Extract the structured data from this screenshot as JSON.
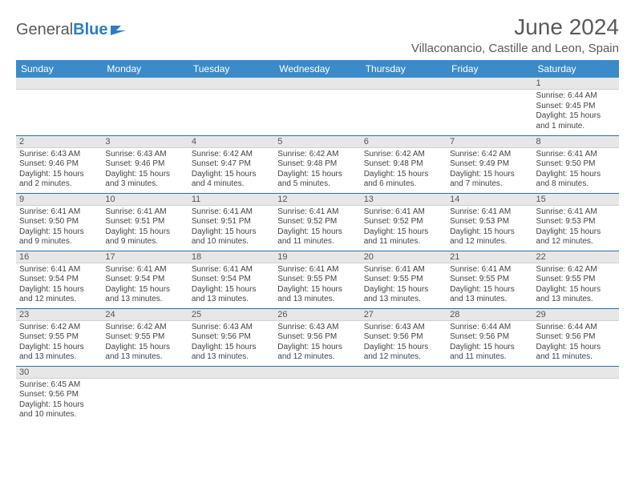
{
  "brand": {
    "part1": "General",
    "part2": "Blue"
  },
  "title": "June 2024",
  "location": "Villaconancio, Castille and Leon, Spain",
  "colors": {
    "header_bg": "#3b8bc9",
    "header_text": "#ffffff",
    "row_divider": "#2b6fa8",
    "daynum_bg": "#e7e7e7",
    "text": "#444444",
    "title_text": "#5a5a5a",
    "logo_blue": "#2b7fc3"
  },
  "typography": {
    "title_fontsize": 28,
    "location_fontsize": 15,
    "dow_fontsize": 12,
    "daynum_fontsize": 11,
    "body_fontsize": 10
  },
  "days_of_week": [
    "Sunday",
    "Monday",
    "Tuesday",
    "Wednesday",
    "Thursday",
    "Friday",
    "Saturday"
  ],
  "first_day_column": 6,
  "days": [
    {
      "n": 1,
      "sunrise": "6:44 AM",
      "sunset": "9:45 PM",
      "daylight": "15 hours and 1 minute."
    },
    {
      "n": 2,
      "sunrise": "6:43 AM",
      "sunset": "9:46 PM",
      "daylight": "15 hours and 2 minutes."
    },
    {
      "n": 3,
      "sunrise": "6:43 AM",
      "sunset": "9:46 PM",
      "daylight": "15 hours and 3 minutes."
    },
    {
      "n": 4,
      "sunrise": "6:42 AM",
      "sunset": "9:47 PM",
      "daylight": "15 hours and 4 minutes."
    },
    {
      "n": 5,
      "sunrise": "6:42 AM",
      "sunset": "9:48 PM",
      "daylight": "15 hours and 5 minutes."
    },
    {
      "n": 6,
      "sunrise": "6:42 AM",
      "sunset": "9:48 PM",
      "daylight": "15 hours and 6 minutes."
    },
    {
      "n": 7,
      "sunrise": "6:42 AM",
      "sunset": "9:49 PM",
      "daylight": "15 hours and 7 minutes."
    },
    {
      "n": 8,
      "sunrise": "6:41 AM",
      "sunset": "9:50 PM",
      "daylight": "15 hours and 8 minutes."
    },
    {
      "n": 9,
      "sunrise": "6:41 AM",
      "sunset": "9:50 PM",
      "daylight": "15 hours and 9 minutes."
    },
    {
      "n": 10,
      "sunrise": "6:41 AM",
      "sunset": "9:51 PM",
      "daylight": "15 hours and 9 minutes."
    },
    {
      "n": 11,
      "sunrise": "6:41 AM",
      "sunset": "9:51 PM",
      "daylight": "15 hours and 10 minutes."
    },
    {
      "n": 12,
      "sunrise": "6:41 AM",
      "sunset": "9:52 PM",
      "daylight": "15 hours and 11 minutes."
    },
    {
      "n": 13,
      "sunrise": "6:41 AM",
      "sunset": "9:52 PM",
      "daylight": "15 hours and 11 minutes."
    },
    {
      "n": 14,
      "sunrise": "6:41 AM",
      "sunset": "9:53 PM",
      "daylight": "15 hours and 12 minutes."
    },
    {
      "n": 15,
      "sunrise": "6:41 AM",
      "sunset": "9:53 PM",
      "daylight": "15 hours and 12 minutes."
    },
    {
      "n": 16,
      "sunrise": "6:41 AM",
      "sunset": "9:54 PM",
      "daylight": "15 hours and 12 minutes."
    },
    {
      "n": 17,
      "sunrise": "6:41 AM",
      "sunset": "9:54 PM",
      "daylight": "15 hours and 13 minutes."
    },
    {
      "n": 18,
      "sunrise": "6:41 AM",
      "sunset": "9:54 PM",
      "daylight": "15 hours and 13 minutes."
    },
    {
      "n": 19,
      "sunrise": "6:41 AM",
      "sunset": "9:55 PM",
      "daylight": "15 hours and 13 minutes."
    },
    {
      "n": 20,
      "sunrise": "6:41 AM",
      "sunset": "9:55 PM",
      "daylight": "15 hours and 13 minutes."
    },
    {
      "n": 21,
      "sunrise": "6:41 AM",
      "sunset": "9:55 PM",
      "daylight": "15 hours and 13 minutes."
    },
    {
      "n": 22,
      "sunrise": "6:42 AM",
      "sunset": "9:55 PM",
      "daylight": "15 hours and 13 minutes."
    },
    {
      "n": 23,
      "sunrise": "6:42 AM",
      "sunset": "9:55 PM",
      "daylight": "15 hours and 13 minutes."
    },
    {
      "n": 24,
      "sunrise": "6:42 AM",
      "sunset": "9:55 PM",
      "daylight": "15 hours and 13 minutes."
    },
    {
      "n": 25,
      "sunrise": "6:43 AM",
      "sunset": "9:56 PM",
      "daylight": "15 hours and 13 minutes."
    },
    {
      "n": 26,
      "sunrise": "6:43 AM",
      "sunset": "9:56 PM",
      "daylight": "15 hours and 12 minutes."
    },
    {
      "n": 27,
      "sunrise": "6:43 AM",
      "sunset": "9:56 PM",
      "daylight": "15 hours and 12 minutes."
    },
    {
      "n": 28,
      "sunrise": "6:44 AM",
      "sunset": "9:56 PM",
      "daylight": "15 hours and 11 minutes."
    },
    {
      "n": 29,
      "sunrise": "6:44 AM",
      "sunset": "9:56 PM",
      "daylight": "15 hours and 11 minutes."
    },
    {
      "n": 30,
      "sunrise": "6:45 AM",
      "sunset": "9:56 PM",
      "daylight": "15 hours and 10 minutes."
    }
  ],
  "labels": {
    "sunrise": "Sunrise:",
    "sunset": "Sunset:",
    "daylight": "Daylight:"
  }
}
